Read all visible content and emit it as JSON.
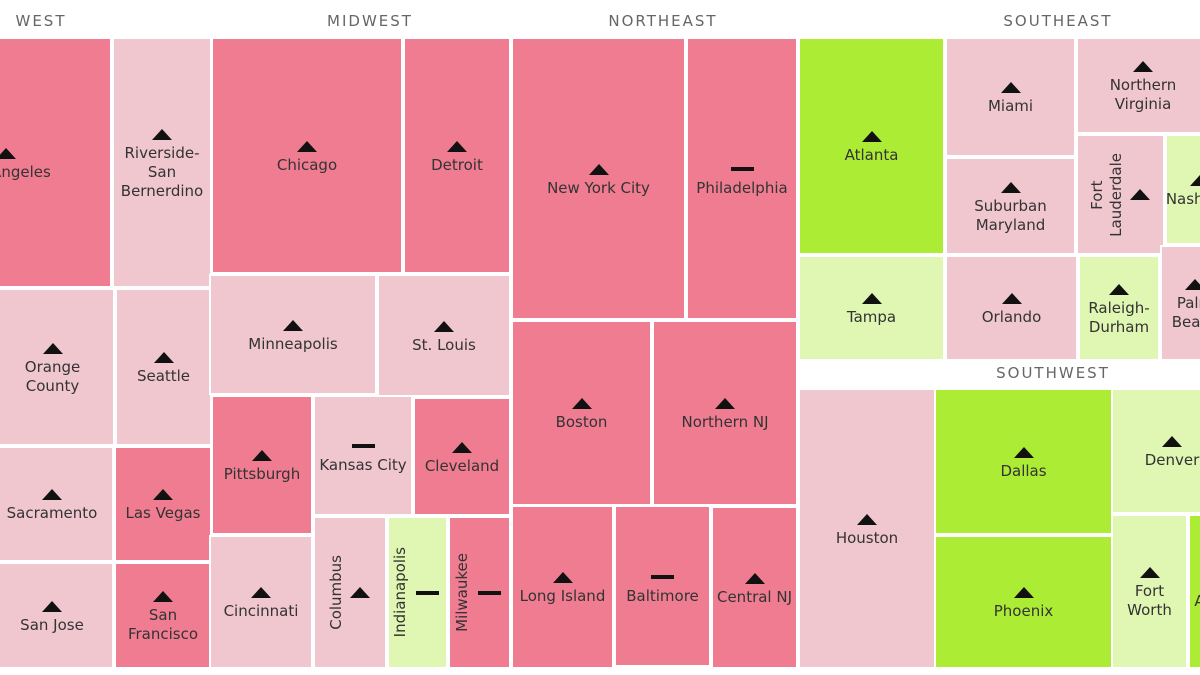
{
  "colors": {
    "high": "#f07c91",
    "mid": "#f0c6cf",
    "low": "#dff7b2",
    "best": "#adec35"
  },
  "chart_data": {
    "type": "treemap",
    "regions": [
      "WEST",
      "MIDWEST",
      "NORTHEAST",
      "SOUTHEAST",
      "SOUTHWEST"
    ],
    "tiles": [
      {
        "name": "Los Angeles",
        "region": "WEST",
        "color": "high",
        "trend": "up"
      },
      {
        "name": "Riverside-San Bernerdino",
        "region": "WEST",
        "color": "mid",
        "trend": "up"
      },
      {
        "name": "Orange County",
        "region": "WEST",
        "color": "mid",
        "trend": "up"
      },
      {
        "name": "Seattle",
        "region": "WEST",
        "color": "mid",
        "trend": "up"
      },
      {
        "name": "Sacramento",
        "region": "WEST",
        "color": "mid",
        "trend": "up"
      },
      {
        "name": "Las Vegas",
        "region": "WEST",
        "color": "high",
        "trend": "up"
      },
      {
        "name": "San Jose",
        "region": "WEST",
        "color": "mid",
        "trend": "up"
      },
      {
        "name": "San Francisco",
        "region": "WEST",
        "color": "high",
        "trend": "up"
      },
      {
        "name": "Chicago",
        "region": "MIDWEST",
        "color": "high",
        "trend": "up"
      },
      {
        "name": "Detroit",
        "region": "MIDWEST",
        "color": "high",
        "trend": "up"
      },
      {
        "name": "Minneapolis",
        "region": "MIDWEST",
        "color": "mid",
        "trend": "up"
      },
      {
        "name": "St. Louis",
        "region": "MIDWEST",
        "color": "mid",
        "trend": "up"
      },
      {
        "name": "Pittsburgh",
        "region": "MIDWEST",
        "color": "high",
        "trend": "up"
      },
      {
        "name": "Kansas City",
        "region": "MIDWEST",
        "color": "mid",
        "trend": "flat"
      },
      {
        "name": "Cleveland",
        "region": "MIDWEST",
        "color": "high",
        "trend": "up"
      },
      {
        "name": "Cincinnati",
        "region": "MIDWEST",
        "color": "mid",
        "trend": "up"
      },
      {
        "name": "Columbus",
        "region": "MIDWEST",
        "color": "mid",
        "trend": "up"
      },
      {
        "name": "Indianapolis",
        "region": "MIDWEST",
        "color": "low",
        "trend": "flat"
      },
      {
        "name": "Milwaukee",
        "region": "MIDWEST",
        "color": "high",
        "trend": "flat"
      },
      {
        "name": "New York City",
        "region": "NORTHEAST",
        "color": "high",
        "trend": "up"
      },
      {
        "name": "Philadelphia",
        "region": "NORTHEAST",
        "color": "high",
        "trend": "flat"
      },
      {
        "name": "Boston",
        "region": "NORTHEAST",
        "color": "high",
        "trend": "up"
      },
      {
        "name": "Northern NJ",
        "region": "NORTHEAST",
        "color": "high",
        "trend": "up"
      },
      {
        "name": "Long Island",
        "region": "NORTHEAST",
        "color": "high",
        "trend": "up"
      },
      {
        "name": "Baltimore",
        "region": "NORTHEAST",
        "color": "high",
        "trend": "flat"
      },
      {
        "name": "Central NJ",
        "region": "NORTHEAST",
        "color": "high",
        "trend": "up"
      },
      {
        "name": "Atlanta",
        "region": "SOUTHEAST",
        "color": "best",
        "trend": "up"
      },
      {
        "name": "Miami",
        "region": "SOUTHEAST",
        "color": "mid",
        "trend": "up"
      },
      {
        "name": "Northern Virginia",
        "region": "SOUTHEAST",
        "color": "mid",
        "trend": "up"
      },
      {
        "name": "Suburban Maryland",
        "region": "SOUTHEAST",
        "color": "mid",
        "trend": "up"
      },
      {
        "name": "Fort Lauderdale",
        "region": "SOUTHEAST",
        "color": "mid",
        "trend": "up"
      },
      {
        "name": "Nashville",
        "region": "SOUTHEAST",
        "color": "low",
        "trend": "up"
      },
      {
        "name": "Tampa",
        "region": "SOUTHEAST",
        "color": "low",
        "trend": "up"
      },
      {
        "name": "Orlando",
        "region": "SOUTHEAST",
        "color": "mid",
        "trend": "up"
      },
      {
        "name": "Raleigh-Durham",
        "region": "SOUTHEAST",
        "color": "low",
        "trend": "up"
      },
      {
        "name": "Palm Beach",
        "region": "SOUTHEAST",
        "color": "mid",
        "trend": "up"
      },
      {
        "name": "Houston",
        "region": "SOUTHWEST",
        "color": "mid",
        "trend": "up"
      },
      {
        "name": "Dallas",
        "region": "SOUTHWEST",
        "color": "best",
        "trend": "up"
      },
      {
        "name": "Denver",
        "region": "SOUTHWEST",
        "color": "low",
        "trend": "up"
      },
      {
        "name": "Phoenix",
        "region": "SOUTHWEST",
        "color": "best",
        "trend": "up"
      },
      {
        "name": "Fort Worth",
        "region": "SOUTHWEST",
        "color": "low",
        "trend": "up"
      },
      {
        "name": "Austin",
        "region": "SOUTHWEST",
        "color": "best",
        "trend": "up"
      }
    ]
  }
}
